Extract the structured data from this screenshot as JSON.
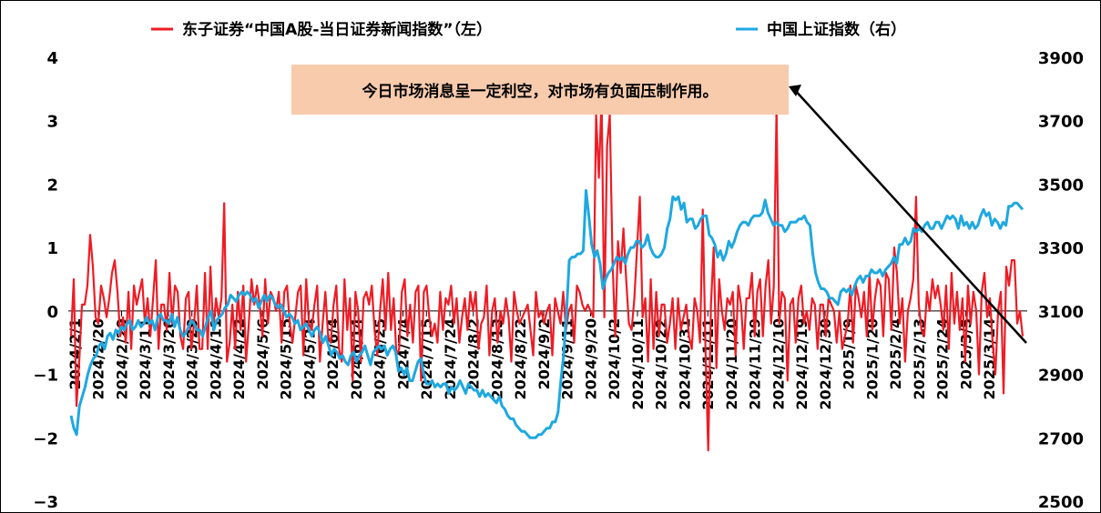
{
  "chart_data": {
    "type": "line",
    "legend": {
      "placement": "top",
      "entries": [
        {
          "name": "东子证券“中国A股-当日证券新闻指数”（左）",
          "color": "#ee1c25"
        },
        {
          "name": "中国上证指数（右）",
          "color": "#1ea8e0"
        }
      ]
    },
    "annotation": "今日市场消息呈一定利空，对市场有负面压制作用。",
    "annotation_color": "#f8cbad",
    "y_left": {
      "ticks": [
        "4",
        "3",
        "2",
        "1",
        "0",
        "−1",
        "−2",
        "−3"
      ],
      "range": [
        -3,
        4
      ]
    },
    "y_right": {
      "ticks": [
        "3900",
        "3700",
        "3500",
        "3300",
        "3100",
        "2900",
        "2700",
        "2500"
      ],
      "range": [
        2500,
        3900
      ]
    },
    "x_labels": [
      "2024/2/1",
      "2024/2/20",
      "2024/2/29",
      "2024/3/11",
      "2024/3/20",
      "2024/3/29",
      "2024/4/11",
      "2024/4/22",
      "2024/5/6",
      "2024/5/15",
      "2024/5/24",
      "2024/6/4",
      "2024/6/14",
      "2024/6/25",
      "2024/7/4",
      "2024/7/15",
      "2024/7/24",
      "2024/8/2",
      "2024/8/13",
      "2024/8/22",
      "2024/9/2",
      "2024/9/11",
      "2024/9/20",
      "2024/10/2",
      "2024/10/11",
      "2024/10/22",
      "2024/10/31",
      "2024/11/11",
      "2024/11/20",
      "2024/11/29",
      "2024/12/10",
      "2024/12/19",
      "2024/12/30",
      "2025/1/9",
      "2025/1/20",
      "2025/2/4",
      "2025/2/13",
      "2025/2/24",
      "2025/3/5",
      "2025/3/14"
    ],
    "series": [
      {
        "name": "东子证券“中国A股-当日证券新闻指数”（左）",
        "color": "#ee1c25",
        "axis": "left",
        "values": [
          -0.4,
          0.5,
          -1.5,
          -0.8,
          0.1,
          0.1,
          0.4,
          1.2,
          0.7,
          -0.1,
          -0.2,
          0.4,
          0.2,
          -0.1,
          0.2,
          0.6,
          0.8,
          0.3,
          -0.4,
          -0.1,
          -0.5,
          0.3,
          -0.6,
          0.4,
          0.1,
          0.3,
          0.5,
          -0.2,
          0.2,
          -0.4,
          0.2,
          0.8,
          -0.6,
          0.1,
          0.1,
          -0.3,
          0.6,
          -0.2,
          0.4,
          0.3,
          -0.4,
          -0.6,
          0.2,
          0.3,
          -0.6,
          -0.2,
          0.4,
          -0.6,
          -0.6,
          0.6,
          -0.6,
          0.7,
          -0.3,
          0.2,
          -0.1,
          0.2,
          1.7,
          -0.8,
          -0.5,
          0.1,
          -0.6,
          0.3,
          -0.3,
          0.4,
          -0.8,
          -0.2,
          0.5,
          0.1,
          0.4,
          0.1,
          -0.4,
          0.5,
          -0.2,
          0.3,
          0.2,
          0.0,
          0.3,
          -0.5,
          0.3,
          0.4,
          -0.2,
          -0.5,
          -0.1,
          0.3,
          0.4,
          -0.7,
          0.5,
          -0.2,
          -0.3,
          0.1,
          0.4,
          -0.8,
          -0.2,
          0.3,
          -0.4,
          -0.5,
          0.1,
          0.4,
          -0.6,
          -0.8,
          0.5,
          -0.3,
          0.2,
          -1.1,
          0.3,
          0.0,
          -0.8,
          0.2,
          0.3,
          0.1,
          0.4,
          -0.3,
          -0.7,
          0.0,
          0.5,
          -0.3,
          0.6,
          -0.3,
          0.2,
          -0.7,
          -0.6,
          0.3,
          0.5,
          -0.4,
          0.1,
          -0.5,
          0.3,
          0.4,
          -1.1,
          0.3,
          0.4,
          -0.1,
          -0.4,
          -0.2,
          -0.5,
          0.3,
          -0.3,
          0.2,
          0.1,
          0.4,
          -0.2,
          0.2,
          -0.5,
          -0.1,
          0.2,
          -0.3,
          0.3,
          0.0,
          0.3,
          -0.6,
          -0.2,
          -0.1,
          0.4,
          -0.7,
          0.0,
          0.2,
          -0.5,
          0.0,
          -0.2,
          0.2,
          -0.1,
          -0.8,
          0.3,
          0.0,
          -0.2,
          -0.1,
          0.0,
          0.1,
          -0.3,
          -0.7,
          0.3,
          -0.1,
          0.0,
          -0.2,
          0.0,
          0.1,
          -0.7,
          0.2,
          0.0,
          -0.2,
          0.3,
          -0.3,
          0.0,
          0.1,
          -0.5,
          0.4,
          0.3,
          0.1,
          0.0,
          0.1,
          0.0,
          -0.1,
          3.1,
          2.1,
          3.4,
          -0.1,
          2.6,
          3.1,
          0.8,
          -0.4,
          1.1,
          0.6,
          1.3,
          0.5,
          -0.2,
          -0.3,
          0.2,
          1.0,
          1.8,
          -0.1,
          0.2,
          -0.8,
          0.5,
          -0.6,
          0.3,
          -0.4,
          0.1,
          0.1,
          -0.5,
          -0.2,
          0.2,
          -0.6,
          0.2,
          -0.3,
          -0.1,
          0.1,
          -0.4,
          -0.6,
          0.2,
          0.0,
          -0.5,
          1.6,
          -0.6,
          -2.2,
          0.1,
          1.0,
          -0.9,
          0.5,
          0.0,
          -0.3,
          0.2,
          0.1,
          0.3,
          -0.7,
          0.4,
          0.1,
          -0.6,
          0.2,
          0.2,
          0.6,
          -0.4,
          0.3,
          0.5,
          -0.4,
          0.4,
          0.8,
          -0.2,
          0.4,
          3.2,
          -0.2,
          0.3,
          0.2,
          -1.1,
          0.1,
          0.2,
          -0.5,
          0.2,
          0.4,
          -0.2,
          0.0,
          -0.3,
          0.2,
          0.1,
          -0.6,
          0.1,
          0.1,
          -0.4,
          0.2,
          0.1,
          0.0,
          -0.5,
          0.0,
          -0.6,
          -0.4,
          -0.2,
          0.4,
          -0.5,
          0.4,
          0.2,
          -0.1,
          0.3,
          -0.4,
          0.6,
          -0.3,
          0.2,
          0.5,
          0.4,
          -0.4,
          0.6,
          0.5,
          -0.3,
          1.0,
          0.6,
          -0.2,
          0.2,
          -0.8,
          0.0,
          0.2,
          0.5,
          1.8,
          0.1,
          -0.3,
          -0.4,
          0.3,
          0.0,
          0.5,
          0.2,
          0.4,
          0.1,
          -0.3,
          0.4,
          -0.6,
          0.6,
          -0.2,
          0.3,
          -0.3,
          0.2,
          -0.8,
          0.4,
          -0.2,
          0.3,
          0.0,
          -1.0,
          0.3,
          0.6,
          -0.1,
          0.2,
          -0.5,
          -1.0,
          0.0,
          0.3,
          -1.3,
          0.7,
          0.4,
          0.8,
          0.8,
          -0.2,
          0.0,
          -0.4
        ]
      },
      {
        "name": "中国上证指数（右）",
        "color": "#1ea8e0",
        "axis": "right",
        "values": [
          2770,
          2730,
          2710,
          2800,
          2830,
          2860,
          2900,
          2930,
          2950,
          2960,
          2990,
          3000,
          2980,
          3020,
          3030,
          3010,
          3040,
          3030,
          3050,
          3040,
          3060,
          3070,
          3040,
          3050,
          3070,
          3050,
          3060,
          3080,
          3060,
          3070,
          3040,
          3080,
          3090,
          3070,
          3070,
          3060,
          3090,
          3050,
          3080,
          3040,
          3020,
          3030,
          3050,
          3070,
          3060,
          3040,
          3040,
          3020,
          3050,
          3080,
          3100,
          3040,
          3070,
          3080,
          3090,
          3110,
          3120,
          3150,
          3140,
          3130,
          3150,
          3160,
          3150,
          3160,
          3150,
          3130,
          3140,
          3110,
          3130,
          3150,
          3130,
          3150,
          3140,
          3120,
          3110,
          3120,
          3100,
          3080,
          3090,
          3080,
          3060,
          3070,
          3040,
          3050,
          3060,
          3040,
          3020,
          3040,
          3050,
          3030,
          3000,
          3020,
          2990,
          2960,
          2980,
          2970,
          2950,
          2960,
          2940,
          2930,
          2960,
          2970,
          2940,
          2960,
          2970,
          2990,
          2960,
          2930,
          2970,
          2980,
          2990,
          2980,
          2990,
          2960,
          2980,
          2990,
          2970,
          2910,
          2920,
          2900,
          2920,
          2880,
          2880,
          2910,
          2940,
          2950,
          2900,
          2870,
          2870,
          2880,
          2860,
          2870,
          2860,
          2870,
          2870,
          2840,
          2860,
          2850,
          2860,
          2880,
          2860,
          2840,
          2870,
          2860,
          2850,
          2850,
          2830,
          2850,
          2830,
          2840,
          2830,
          2820,
          2810,
          2830,
          2800,
          2790,
          2770,
          2760,
          2760,
          2740,
          2730,
          2720,
          2720,
          2710,
          2700,
          2700,
          2700,
          2710,
          2710,
          2720,
          2730,
          2730,
          2750,
          2750,
          2780,
          2880,
          2960,
          3090,
          3260,
          3270,
          3270,
          3280,
          3280,
          3290,
          3480,
          3400,
          3310,
          3270,
          3290,
          3250,
          3170,
          3200,
          3220,
          3230,
          3250,
          3270,
          3260,
          3270,
          3250,
          3280,
          3300,
          3300,
          3320,
          3320,
          3300,
          3310,
          3340,
          3300,
          3280,
          3270,
          3270,
          3280,
          3300,
          3360,
          3390,
          3460,
          3450,
          3460,
          3420,
          3440,
          3380,
          3390,
          3390,
          3360,
          3370,
          3390,
          3400,
          3400,
          3340,
          3330,
          3310,
          3270,
          3290,
          3260,
          3280,
          3320,
          3300,
          3320,
          3350,
          3370,
          3380,
          3380,
          3370,
          3390,
          3400,
          3400,
          3400,
          3410,
          3450,
          3410,
          3390,
          3370,
          3380,
          3370,
          3370,
          3350,
          3360,
          3380,
          3380,
          3380,
          3390,
          3390,
          3400,
          3380,
          3370,
          3280,
          3220,
          3190,
          3170,
          3170,
          3160,
          3140,
          3140,
          3130,
          3120,
          3160,
          3170,
          3160,
          3170,
          3150,
          3180,
          3200,
          3210,
          3190,
          3210,
          3210,
          3230,
          3220,
          3220,
          3230,
          3210,
          3230,
          3240,
          3250,
          3270,
          3250,
          3310,
          3310,
          3330,
          3310,
          3320,
          3360,
          3350,
          3360,
          3350,
          3370,
          3380,
          3360,
          3360,
          3380,
          3380,
          3360,
          3380,
          3400,
          3390,
          3400,
          3390,
          3360,
          3400,
          3370,
          3380,
          3360,
          3380,
          3360,
          3370,
          3400,
          3420,
          3400,
          3410,
          3370,
          3390,
          3380,
          3360,
          3380,
          3370,
          3430,
          3430,
          3440,
          3440,
          3430,
          3420
        ]
      }
    ]
  }
}
